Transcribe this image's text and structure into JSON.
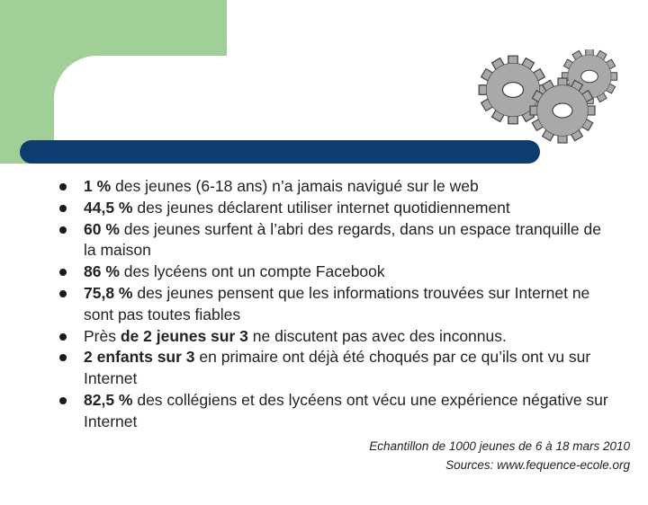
{
  "slide": {
    "icon": "gears-icon",
    "bullets": [
      {
        "pre": "",
        "bold": "1 %",
        "post": " des jeunes (6-18 ans) n’a jamais navigué sur le web"
      },
      {
        "pre": "",
        "bold": "44,5 %",
        "post": " des jeunes déclarent utiliser internet quotidiennement"
      },
      {
        "pre": "",
        "bold": "60 %",
        "post": " des jeunes surfent à l’abri des regards, dans un espace tranquille de  la maison"
      },
      {
        "pre": "",
        "bold": "86 %",
        "post": " des lycéens ont un compte Facebook"
      },
      {
        "pre": "",
        "bold": "75,8 %",
        "post": " des jeunes pensent que les informations trouvées sur Internet ne sont pas toutes fiables"
      },
      {
        "pre": "Près ",
        "bold": "de 2 jeunes sur 3",
        "post": " ne discutent pas avec des inconnus."
      },
      {
        "pre": "",
        "bold": "2 enfants sur 3",
        "post": " en primaire ont déjà été choqués par ce qu’ils ont vu sur Internet"
      },
      {
        "pre": "",
        "bold": "82,5 %",
        "post": " des collégiens et des lycéens ont vécu une expérience négative sur Internet"
      }
    ],
    "footer_sample": "Echantillon de 1000 jeunes de 6 à 18 mars 2010",
    "footer_sources": "Sources: www.fequence-ecole.org"
  }
}
